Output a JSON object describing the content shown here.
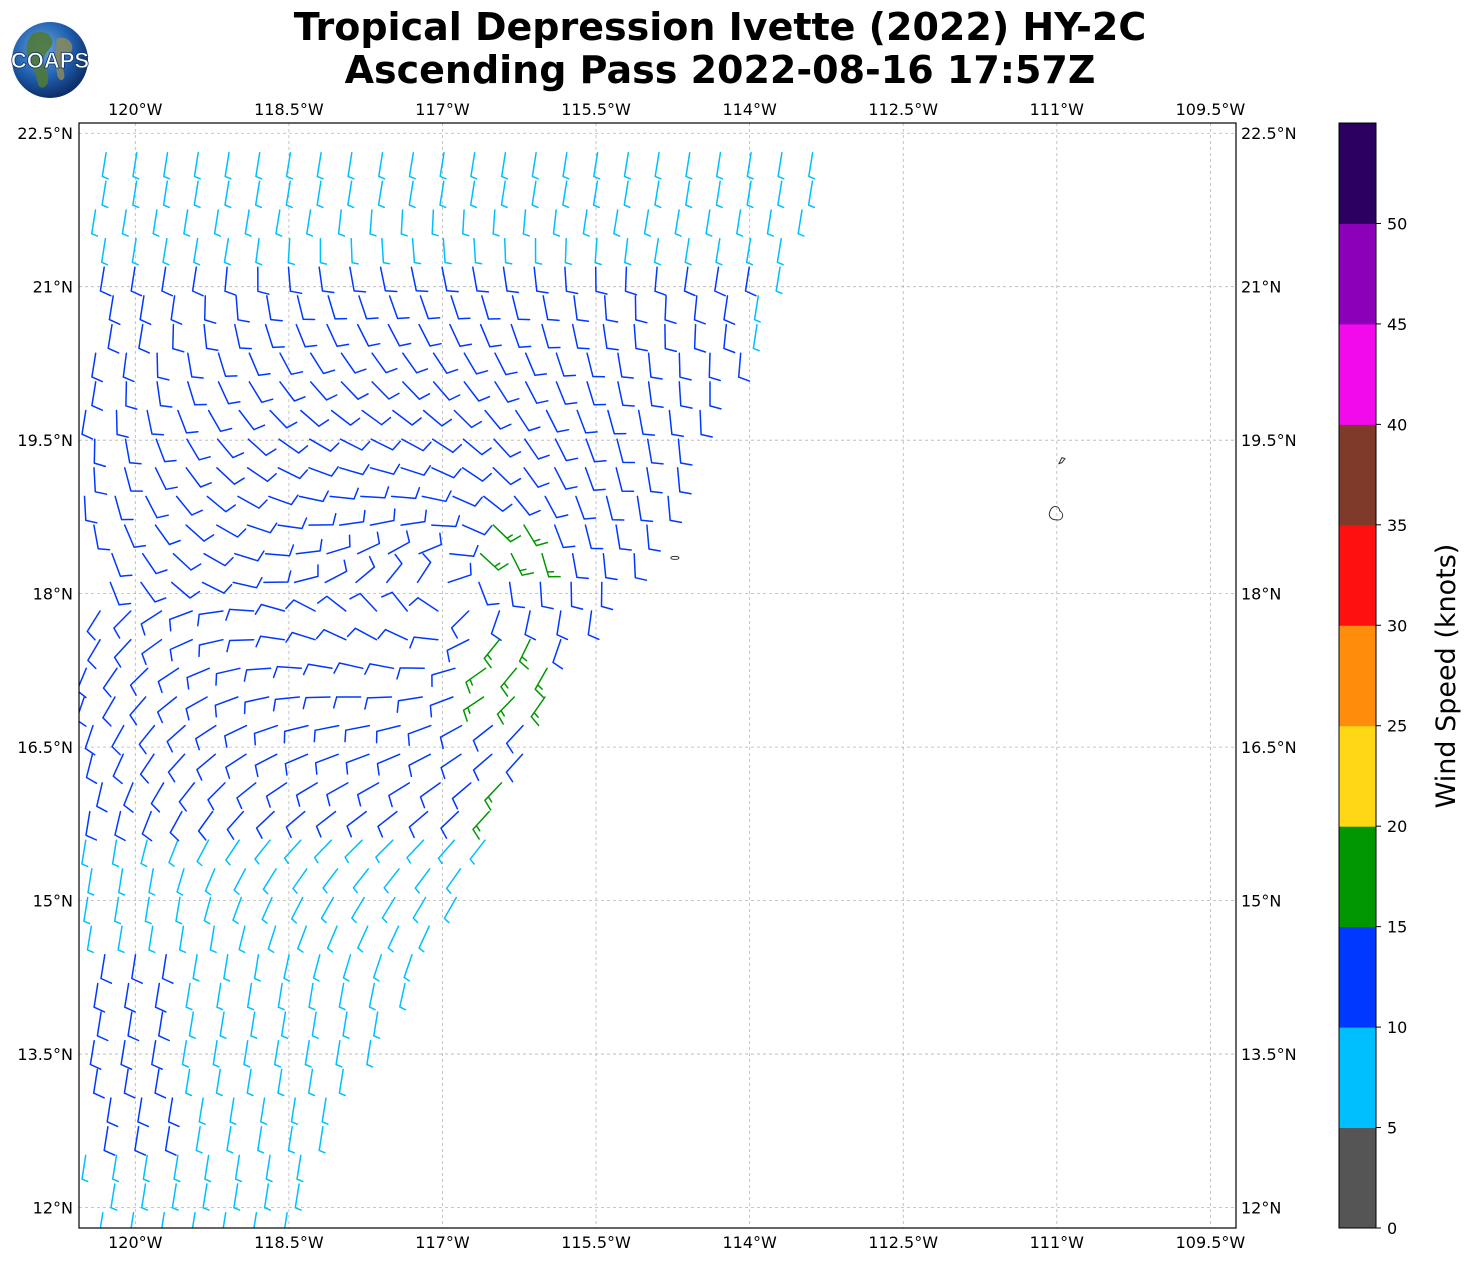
{
  "title": {
    "line1": "Tropical Depression Ivette (2022) HY-2C",
    "line2": "Ascending Pass 2022-08-16 17:57Z"
  },
  "logo": {
    "text": "COAPS",
    "icon": "globe-logo-icon"
  },
  "map": {
    "lon_range": [
      -120.55,
      -109.25
    ],
    "lat_range": [
      11.8,
      22.6
    ],
    "lon_ticks": [
      {
        "value": -120,
        "label": "120°W"
      },
      {
        "value": -118.5,
        "label": "118.5°W"
      },
      {
        "value": -117,
        "label": "117°W"
      },
      {
        "value": -115.5,
        "label": "115.5°W"
      },
      {
        "value": -114,
        "label": "114°W"
      },
      {
        "value": -112.5,
        "label": "112.5°W"
      },
      {
        "value": -111,
        "label": "111°W"
      },
      {
        "value": -109.5,
        "label": "109.5°W"
      }
    ],
    "lat_ticks": [
      {
        "value": 22.5,
        "label": "22.5°N"
      },
      {
        "value": 21,
        "label": "21°N"
      },
      {
        "value": 19.5,
        "label": "19.5°N"
      },
      {
        "value": 18,
        "label": "18°N"
      },
      {
        "value": 16.5,
        "label": "16.5°N"
      },
      {
        "value": 15,
        "label": "15°N"
      },
      {
        "value": 13.5,
        "label": "13.5°N"
      },
      {
        "value": 12,
        "label": "12°N"
      }
    ],
    "grid": true,
    "islands": [
      {
        "lon": -110.95,
        "lat": 19.3,
        "size": "small"
      },
      {
        "lon": -111.0,
        "lat": 18.78,
        "size": "medium"
      },
      {
        "lon": -114.73,
        "lat": 18.35,
        "size": "tiny"
      }
    ]
  },
  "colorbar": {
    "label": "Wind Speed (knots)",
    "bins": [
      {
        "min": 0,
        "max": 5,
        "color": "#555555"
      },
      {
        "min": 5,
        "max": 10,
        "color": "#00bfff"
      },
      {
        "min": 10,
        "max": 15,
        "color": "#0038ff"
      },
      {
        "min": 15,
        "max": 20,
        "color": "#009700"
      },
      {
        "min": 20,
        "max": 25,
        "color": "#ffd714"
      },
      {
        "min": 25,
        "max": 30,
        "color": "#ff8c0a"
      },
      {
        "min": 30,
        "max": 35,
        "color": "#ff1010"
      },
      {
        "min": 35,
        "max": 40,
        "color": "#7f3a2a"
      },
      {
        "min": 40,
        "max": 45,
        "color": "#f20aed"
      },
      {
        "min": 45,
        "max": 50,
        "color": "#8b00b8"
      },
      {
        "min": 50,
        "max": 55,
        "color": "#2c0060"
      }
    ],
    "ticks": [
      "0",
      "5",
      "10",
      "15",
      "20",
      "25",
      "30",
      "35",
      "40",
      "45",
      "50"
    ]
  },
  "wind_swath": {
    "edge": [
      {
        "lat": 22.6,
        "lon": -113.1
      },
      {
        "lat": 21.5,
        "lon": -113.5
      },
      {
        "lat": 20.5,
        "lon": -113.9
      },
      {
        "lat": 19.8,
        "lon": -114.4
      },
      {
        "lat": 19.3,
        "lon": -114.6
      },
      {
        "lat": 18.7,
        "lon": -114.8
      },
      {
        "lat": 18.2,
        "lon": -115.2
      },
      {
        "lat": 17.5,
        "lon": -115.7
      },
      {
        "lat": 16.8,
        "lon": -116.0
      },
      {
        "lat": 16.0,
        "lon": -116.3
      },
      {
        "lat": 15.0,
        "lon": -116.8
      },
      {
        "lat": 14.0,
        "lon": -117.4
      },
      {
        "lat": 13.0,
        "lon": -118.0
      },
      {
        "lat": 11.8,
        "lon": -118.5
      }
    ],
    "speed_regions": [
      {
        "speed": 12,
        "lat_min": 15.8,
        "lat_max": 21.3,
        "lon_min": -120.5,
        "lon_max": -114.0
      },
      {
        "speed": 12,
        "lat_min": 12.6,
        "lat_max": 14.6,
        "lon_min": -120.5,
        "lon_max": -119.6
      },
      {
        "speed": 17,
        "lat_min": 18.3,
        "lat_max": 18.8,
        "lon_min": -116.7,
        "lon_max": -116.0
      },
      {
        "speed": 17,
        "lat_min": 16.8,
        "lat_max": 17.6,
        "lon_min": -116.7,
        "lon_max": -115.9
      },
      {
        "speed": 17,
        "lat_min": 15.7,
        "lat_max": 16.2,
        "lon_min": -116.7,
        "lon_max": -116.3
      }
    ],
    "default_speed": 7
  }
}
